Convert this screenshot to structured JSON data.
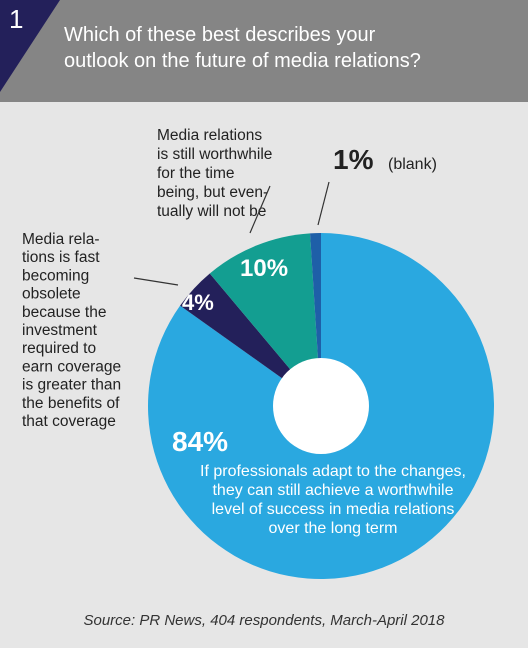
{
  "figure": {
    "number": "1",
    "question_lines": [
      "Which of these best describes your",
      "outlook on the future of media relations?"
    ],
    "source": "Source: PR News, 404 respondents, March-April 2018"
  },
  "colors": {
    "header_bg": "#858585",
    "badge": "#23205a",
    "panel_bg": "#e6e6e6",
    "adapt": "#2aa8e0",
    "obsolete": "#23205a",
    "not_worthwhile": "#139e91",
    "blank": "#1e5fa8"
  },
  "chart_data": {
    "type": "pie",
    "donut": true,
    "start_angle_deg": 0,
    "slices": [
      {
        "id": "adapt",
        "value": 84,
        "percent_label": "84%",
        "color": "#2aa8e0",
        "description_lines": [
          "If professionals adapt to the changes,",
          "they can still achieve a worthwhile",
          "level of success in media relations",
          "over the long term"
        ]
      },
      {
        "id": "obsolete",
        "value": 4,
        "percent_label": "4%",
        "color": "#23205a",
        "description_lines": [
          "Media rela-",
          "tions is fast",
          "becoming",
          "obsolete",
          "because the",
          "investment",
          "required to",
          "earn coverage",
          "is greater than",
          "the benefits of",
          "that coverage"
        ]
      },
      {
        "id": "not_worthwhile",
        "value": 10,
        "percent_label": "10%",
        "color": "#139e91",
        "description_lines": [
          "Media relations",
          "is still worthwhile",
          "for the time",
          "being, but even-",
          "tually will not be"
        ]
      },
      {
        "id": "blank",
        "value": 1,
        "percent_label": "1%",
        "color": "#1e5fa8",
        "description_lines": [
          "(blank)"
        ]
      }
    ]
  }
}
